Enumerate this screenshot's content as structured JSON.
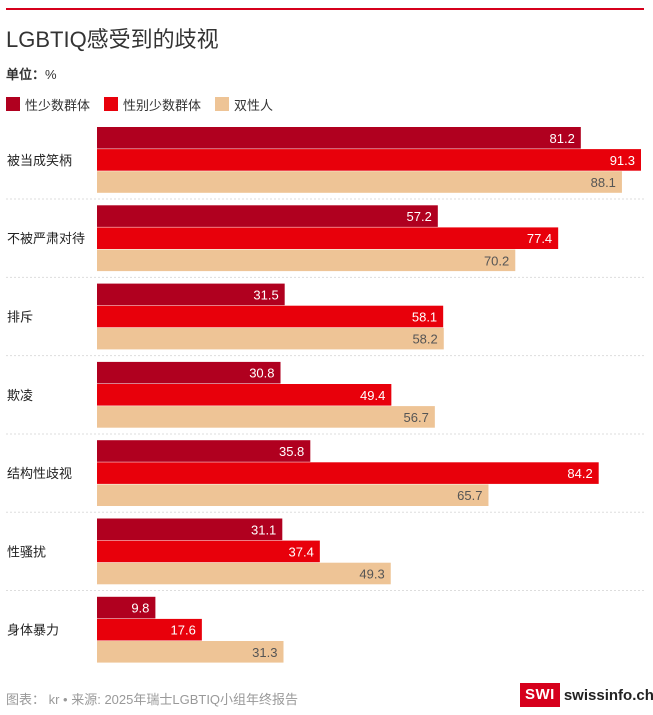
{
  "title": "LGBTIQ感受到的歧视",
  "unit": {
    "label": "单位：",
    "value": "%"
  },
  "footer": "图表： kr • 来源: 2025年瑞士LGBTIQ小组年终报告",
  "logo": {
    "box": "SWI",
    "text": "swissinfo.ch"
  },
  "chart_data": {
    "type": "bar",
    "orientation": "horizontal",
    "categories": [
      "被当成笑柄",
      "不被严肃对待",
      "排斥",
      "欺凌",
      "结构性歧视",
      "性骚扰",
      "身体暴力"
    ],
    "series": [
      {
        "name": "性少数群体",
        "color": "#b0001f",
        "values": [
          81.2,
          57.2,
          31.5,
          30.8,
          35.8,
          31.1,
          9.8
        ]
      },
      {
        "name": "性别少数群体",
        "color": "#e8000b",
        "values": [
          91.3,
          77.4,
          58.1,
          49.4,
          84.2,
          37.4,
          17.6
        ]
      },
      {
        "name": "双性人",
        "color": "#eec496",
        "values": [
          88.1,
          70.2,
          58.2,
          56.7,
          65.7,
          49.3,
          31.3
        ]
      }
    ],
    "xlim": [
      0,
      91.3
    ],
    "legend": "top-left",
    "data_labels": true
  }
}
